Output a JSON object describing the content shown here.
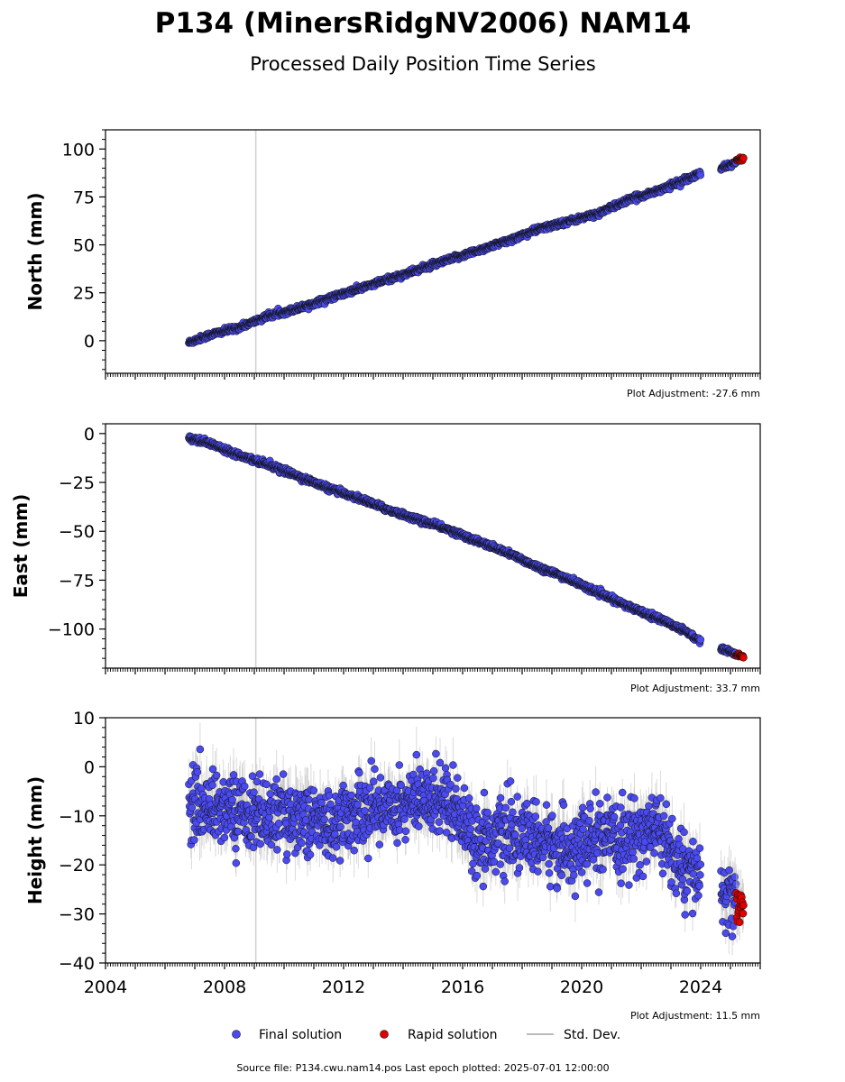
{
  "title": "P134 (MinersRidgNV2006) NAM14",
  "subtitle": "Processed Daily Position Time Series",
  "footer": "Source file: P134.cwu.nam14.pos  Last epoch plotted: 2025-07-01 12:00:00",
  "legend": {
    "final": "Final solution",
    "rapid": "Rapid solution",
    "std": "Std. Dev."
  },
  "colors": {
    "final": "#4a4af0",
    "rapid": "#e00000",
    "std": "#bbbbbb",
    "vline": "#d0d0d0"
  },
  "chart_data": [
    {
      "type": "scatter",
      "ylabel": "North (mm)",
      "ylim": [
        -17,
        110
      ],
      "yticks": [
        0,
        25,
        50,
        75,
        100
      ],
      "ytick_labels": [
        "0",
        "25",
        "50",
        "75",
        "100"
      ],
      "xlim": [
        2004,
        2026
      ],
      "adjustment": "Plot Adjustment: -27.6 mm",
      "vline_x": 2009.05,
      "grid": false,
      "series": [
        {
          "name": "Final solution",
          "x": [
            2006.8,
            2007.5,
            2008.5,
            2009.5,
            2010.5,
            2011.5,
            2012.5,
            2013.5,
            2014.5,
            2015.5,
            2016.5,
            2017.5,
            2018.5,
            2019.5,
            2020.5,
            2021.5,
            2022.5,
            2023.5,
            2023.95,
            2024.7,
            2025.2
          ],
          "y": [
            -1,
            3,
            7,
            13,
            17,
            22,
            27,
            32,
            37,
            42,
            47,
            52,
            58,
            62,
            66,
            73,
            78,
            84,
            87,
            90,
            93
          ],
          "spread": 1.5
        },
        {
          "name": "Rapid solution",
          "x": [
            2025.2,
            2025.45
          ],
          "y": [
            94,
            95
          ],
          "spread": 0.8
        }
      ]
    },
    {
      "type": "scatter",
      "ylabel": "East (mm)",
      "ylim": [
        -120,
        5
      ],
      "yticks": [
        0,
        -25,
        -50,
        -75,
        -100
      ],
      "ytick_labels": [
        "0",
        "−25",
        "−50",
        "−75",
        "−100"
      ],
      "xlim": [
        2004,
        2026
      ],
      "adjustment": "Plot Adjustment: 33.7 mm",
      "vline_x": 2009.05,
      "grid": false,
      "series": [
        {
          "name": "Final solution",
          "x": [
            2006.8,
            2007.5,
            2008.5,
            2009.5,
            2010.5,
            2011.5,
            2012.5,
            2013.5,
            2014.5,
            2015.5,
            2016.5,
            2017.5,
            2018.5,
            2019.5,
            2020.5,
            2021.5,
            2022.5,
            2023.5,
            2023.95,
            2024.7,
            2025.2
          ],
          "y": [
            -2,
            -5,
            -11,
            -16,
            -22,
            -28,
            -33,
            -39,
            -44,
            -49,
            -55,
            -61,
            -68,
            -74,
            -81,
            -88,
            -94,
            -101,
            -106,
            -110,
            -113
          ],
          "spread": 1.5
        },
        {
          "name": "Rapid solution",
          "x": [
            2025.2,
            2025.45
          ],
          "y": [
            -113,
            -114
          ],
          "spread": 0.8
        }
      ]
    },
    {
      "type": "scatter",
      "ylabel": "Height (mm)",
      "ylim": [
        -40,
        10
      ],
      "yticks": [
        10,
        0,
        -10,
        -20,
        -30,
        -40
      ],
      "ytick_labels": [
        "10",
        "0",
        "−10",
        "−20",
        "−30",
        "−40"
      ],
      "xlim": [
        2004,
        2026
      ],
      "xticks": [
        2004,
        2008,
        2012,
        2016,
        2020,
        2024
      ],
      "xtick_labels": [
        "2004",
        "2008",
        "2012",
        "2016",
        "2020",
        "2024"
      ],
      "adjustment": "Plot Adjustment: 11.5 mm",
      "vline_x": 2009.05,
      "grid": false,
      "series": [
        {
          "name": "Final solution",
          "x": [
            2006.8,
            2007.5,
            2008.5,
            2009.5,
            2010.5,
            2011.5,
            2012.5,
            2013.5,
            2014.5,
            2015.5,
            2016.5,
            2017.5,
            2018.5,
            2019.5,
            2020.5,
            2021.5,
            2022.5,
            2023.5,
            2023.95,
            2024.7,
            2025.2
          ],
          "y": [
            -8,
            -8,
            -9,
            -10,
            -10,
            -12,
            -9,
            -8,
            -7,
            -6,
            -15,
            -14,
            -15,
            -17,
            -15,
            -15,
            -12,
            -22,
            -22,
            -26,
            -28
          ],
          "spread": 5
        },
        {
          "name": "Rapid solution",
          "x": [
            2025.2,
            2025.45
          ],
          "y": [
            -28,
            -29
          ],
          "spread": 2.5
        }
      ]
    }
  ]
}
